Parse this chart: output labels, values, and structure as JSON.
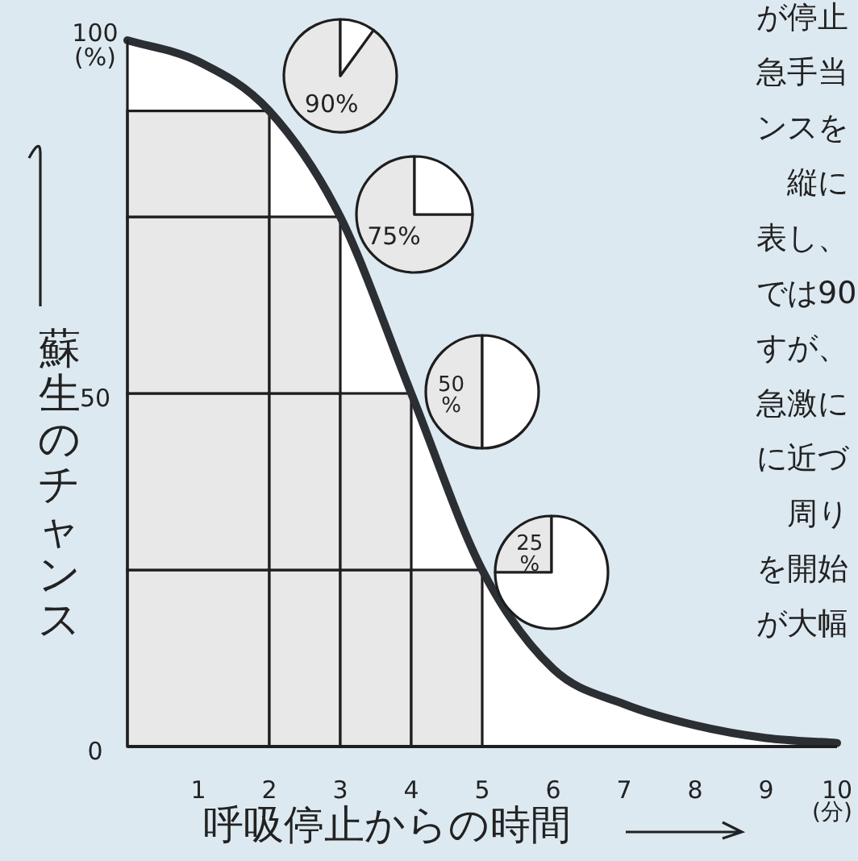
{
  "chart_data": [
    {
      "type": "line",
      "xlabel": "呼吸停止からの時間",
      "ylabel": "蘇生のチャンス",
      "xlim": [
        0,
        10
      ],
      "ylim": [
        0,
        100
      ],
      "xticks": [
        1,
        2,
        3,
        4,
        5,
        6,
        7,
        8,
        9,
        10
      ],
      "yticks": [
        0,
        50,
        {
          "value": 100,
          "label": "100\n(%)"
        }
      ],
      "bins": [
        0,
        2,
        3,
        4,
        5
      ],
      "annotations": [
        "(分)",
        "が停止",
        "急手当",
        "ンスを",
        "　縦に",
        "表し、",
        "では90",
        "すが、",
        "急激に",
        "に近づ",
        "　周り",
        "を開始",
        "が大幅"
      ],
      "series": [
        {
          "type": "histogram",
          "color": "#e8e8e8",
          "base": [
            0,
            0,
            0,
            0
          ],
          "values": [
            25,
            25,
            25,
            25
          ]
        },
        {
          "type": "histogram",
          "color": "#e8e8e8",
          "base": [
            25,
            25,
            25,
            null
          ],
          "values": [
            25,
            25,
            25,
            null
          ]
        },
        {
          "type": "histogram",
          "color": "#e8e8e8",
          "base": [
            50,
            50,
            null,
            null
          ],
          "values": [
            25,
            25,
            null,
            null
          ]
        },
        {
          "type": "histogram",
          "color": "#e8e8e8",
          "base": [
            75,
            null,
            null,
            null
          ],
          "values": [
            15,
            null,
            null,
            null
          ]
        },
        {
          "type": "area",
          "color": "#2b2e33",
          "x": [
            0,
            1,
            2,
            3,
            4,
            5,
            6,
            7,
            8,
            9,
            10
          ],
          "values": [
            100,
            97,
            90,
            75,
            50,
            25,
            11,
            6,
            3,
            1.2,
            0.5
          ]
        }
      ]
    },
    {
      "type": "pie",
      "categories": [
        null,
        null
      ],
      "values": [
        90,
        10
      ],
      "colors": [
        "#e8e8e8",
        "#ffffff"
      ],
      "value_labels": [
        "90%",
        null
      ]
    },
    {
      "type": "pie",
      "categories": [
        null,
        null
      ],
      "values": [
        75,
        25
      ],
      "colors": [
        "#e8e8e8",
        "#ffffff"
      ],
      "value_labels": [
        "75%",
        null
      ]
    },
    {
      "type": "pie",
      "categories": [
        null,
        null
      ],
      "values": [
        50,
        50
      ],
      "colors": [
        "#e8e8e8",
        "#ffffff"
      ],
      "value_labels": [
        "50\n%",
        null
      ]
    },
    {
      "type": "pie",
      "categories": [
        null,
        null
      ],
      "values": [
        25,
        75
      ],
      "colors": [
        "#e8e8e8",
        "#ffffff"
      ],
      "value_labels": [
        "25\n%",
        null
      ]
    }
  ]
}
